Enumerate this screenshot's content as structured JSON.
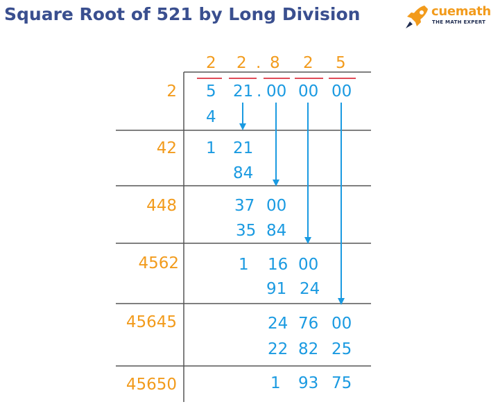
{
  "title": "Square Root of 521 by Long Division",
  "logo": {
    "brand": "cuemath",
    "tagline": "THE MATH EXPERT",
    "icon": "rocket-icon"
  },
  "colors": {
    "title": "#3a4f8f",
    "quotient": "#f29b1c",
    "work": "#1a9ae1",
    "bar": "#e04b57",
    "rule": "#555555",
    "brand": "#f29b1c"
  },
  "quotient": [
    "2",
    "2",
    ".",
    "8",
    "2",
    "5"
  ],
  "dividend": [
    "5",
    "21",
    ".",
    "00",
    "00",
    "00"
  ],
  "divisors": [
    "2",
    "42",
    "448",
    "4562",
    "45645",
    "45650"
  ],
  "work": {
    "s1": "4",
    "r1a": "1",
    "r1b": "21",
    "s2": "84",
    "r2a": "37",
    "r2b": "00",
    "s3a": "35",
    "s3b": "84",
    "r3a": "1",
    "r3b": "16",
    "r3c": "00",
    "s4a": "91",
    "s4b": "24",
    "r4a": "24",
    "r4b": "76",
    "r4c": "00",
    "s5a": "22",
    "s5b": "82",
    "s5c": "25",
    "r5a": "1",
    "r5b": "93",
    "r5c": "75"
  }
}
